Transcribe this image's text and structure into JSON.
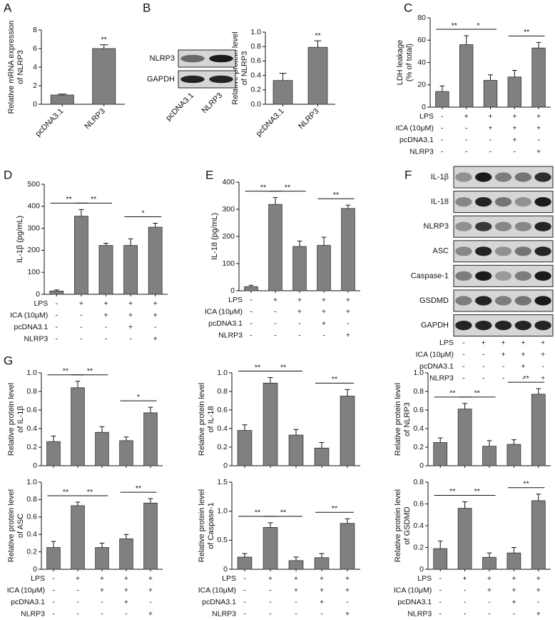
{
  "chart_data": [
    {
      "panel": "A",
      "type": "bar",
      "categories": [
        "pcDNA3.1",
        "NLRP3"
      ],
      "values": [
        1.0,
        6.0
      ],
      "errors": [
        0.1,
        0.4
      ],
      "ylabel": [
        "Relative mRNA expression",
        "of NLRP3"
      ],
      "ylim": [
        0,
        8
      ],
      "yticks": [
        0,
        2,
        4,
        6,
        8
      ],
      "color": "#808080",
      "significance": [
        {
          "from": 1,
          "to": 1,
          "label": "**"
        }
      ]
    },
    {
      "panel": "B",
      "type": "bar",
      "categories": [
        "pcDNA3.1",
        "NLRP3"
      ],
      "values": [
        0.33,
        0.79
      ],
      "errors": [
        0.1,
        0.09
      ],
      "ylabel": [
        "Relative protein level",
        "of NLRP3"
      ],
      "ylim": [
        0,
        1
      ],
      "yticks": [
        {
          "value": 0,
          "label": "0.0"
        },
        0.2,
        0.4,
        0.6,
        0.8,
        {
          "value": 1,
          "label": "1.0"
        }
      ],
      "color": "#808080",
      "significance": [
        {
          "from": 1,
          "to": 1,
          "label": "**"
        }
      ]
    },
    {
      "panel": "C",
      "type": "bar",
      "values": [
        14,
        56,
        24,
        27,
        53
      ],
      "errors": [
        5,
        8,
        5,
        6,
        5
      ],
      "ylabel": [
        "LDH leakage",
        "(% of total)"
      ],
      "ylim": [
        0,
        80
      ],
      "yticks": [
        0,
        20,
        40,
        60,
        80
      ],
      "color": "#808080",
      "significance": [
        {
          "from": 0,
          "to": 1,
          "label": "**"
        },
        {
          "from": 1,
          "to": 2,
          "label": "*"
        },
        {
          "from": 3,
          "to": 4,
          "label": "**"
        }
      ],
      "treatments": [
        {
          "name": "LPS",
          "signs": [
            "-",
            "+",
            "+",
            "+",
            "+"
          ]
        },
        {
          "name": "ICA (10μM)",
          "signs": [
            "-",
            "-",
            "+",
            "+",
            "+"
          ]
        },
        {
          "name": "pcDNA3.1",
          "signs": [
            "-",
            "-",
            "-",
            "+",
            "-"
          ]
        },
        {
          "name": "NLRP3",
          "signs": [
            "-",
            "-",
            "-",
            "-",
            "+"
          ]
        }
      ]
    },
    {
      "panel": "D",
      "type": "bar",
      "values": [
        15,
        355,
        222,
        222,
        305
      ],
      "errors": [
        5,
        30,
        10,
        30,
        18
      ],
      "ylabel": [
        "IL-1β (pg/mL)"
      ],
      "ylim": [
        0,
        500
      ],
      "yticks": [
        0,
        100,
        200,
        300,
        400,
        500
      ],
      "color": "#808080",
      "significance": [
        {
          "from": 0,
          "to": 1,
          "label": "**"
        },
        {
          "from": 1,
          "to": 2,
          "label": "**"
        },
        {
          "from": 3,
          "to": 4,
          "label": "*"
        }
      ],
      "treatments": [
        {
          "name": "LPS",
          "signs": [
            "-",
            "+",
            "+",
            "+",
            "+"
          ]
        },
        {
          "name": "ICA (10μM)",
          "signs": [
            "-",
            "-",
            "+",
            "+",
            "+"
          ]
        },
        {
          "name": "pcDNA3.1",
          "signs": [
            "-",
            "-",
            "-",
            "+",
            "-"
          ]
        },
        {
          "name": "NLRP3",
          "signs": [
            "-",
            "-",
            "-",
            "-",
            "+"
          ]
        }
      ]
    },
    {
      "panel": "E",
      "type": "bar",
      "values": [
        15,
        318,
        163,
        167,
        303
      ],
      "errors": [
        5,
        25,
        20,
        30,
        12
      ],
      "ylabel": [
        "IL-18 (pg/mL)"
      ],
      "ylim": [
        0,
        400
      ],
      "yticks": [
        0,
        100,
        200,
        300,
        400
      ],
      "color": "#808080",
      "significance": [
        {
          "from": 0,
          "to": 1,
          "label": "**"
        },
        {
          "from": 1,
          "to": 2,
          "label": "**"
        },
        {
          "from": 3,
          "to": 4,
          "label": "**"
        }
      ],
      "treatments": [
        {
          "name": "LPS",
          "signs": [
            "-",
            "+",
            "+",
            "+",
            "+"
          ]
        },
        {
          "name": "ICA (10μM)",
          "signs": [
            "-",
            "-",
            "+",
            "+",
            "+"
          ]
        },
        {
          "name": "pcDNA3.1",
          "signs": [
            "-",
            "-",
            "-",
            "+",
            "-"
          ]
        },
        {
          "name": "NLRP3",
          "signs": [
            "-",
            "-",
            "-",
            "-",
            "+"
          ]
        }
      ]
    },
    {
      "panel": "G",
      "type": "bar",
      "values": [
        0.26,
        0.84,
        0.36,
        0.27,
        0.57
      ],
      "errors": [
        0.06,
        0.07,
        0.06,
        0.04,
        0.06
      ],
      "ylabel": [
        "Relative protein level",
        "of IL-1β"
      ],
      "ylim": [
        0,
        1
      ],
      "yticks": [
        0,
        0.2,
        0.4,
        0.6,
        0.8,
        {
          "value": 1,
          "label": "1.0"
        }
      ],
      "color": "#808080",
      "significance": [
        {
          "from": 0,
          "to": 1,
          "label": "**"
        },
        {
          "from": 1,
          "to": 2,
          "label": "**"
        },
        {
          "from": 3,
          "to": 4,
          "label": "*"
        }
      ]
    },
    {
      "type": "bar",
      "values": [
        0.38,
        0.89,
        0.33,
        0.19,
        0.75
      ],
      "errors": [
        0.06,
        0.06,
        0.06,
        0.06,
        0.07
      ],
      "ylabel": [
        "Relative protein level",
        "of IL-18"
      ],
      "ylim": [
        0,
        1
      ],
      "yticks": [
        0,
        0.2,
        0.4,
        0.6,
        0.8,
        {
          "value": 1,
          "label": "1.0"
        }
      ],
      "color": "#808080",
      "significance": [
        {
          "from": 0,
          "to": 1,
          "label": "**"
        },
        {
          "from": 1,
          "to": 2,
          "label": "**"
        },
        {
          "from": 3,
          "to": 4,
          "label": "**"
        }
      ]
    },
    {
      "type": "bar",
      "values": [
        0.25,
        0.61,
        0.21,
        0.23,
        0.77
      ],
      "errors": [
        0.05,
        0.06,
        0.06,
        0.05,
        0.06
      ],
      "ylabel": [
        "Relative protein level",
        "of NLRP3"
      ],
      "ylim": [
        0,
        1
      ],
      "yticks": [
        0,
        0.2,
        0.4,
        0.6,
        0.8,
        {
          "value": 1,
          "label": "1.0"
        }
      ],
      "color": "#808080",
      "significance": [
        {
          "from": 0,
          "to": 1,
          "label": "**"
        },
        {
          "from": 1,
          "to": 2,
          "label": "**"
        },
        {
          "from": 3,
          "to": 4,
          "label": "**"
        }
      ]
    },
    {
      "type": "bar",
      "values": [
        0.25,
        0.73,
        0.25,
        0.35,
        0.76
      ],
      "errors": [
        0.07,
        0.04,
        0.05,
        0.05,
        0.05
      ],
      "ylabel": [
        "Relative protein level",
        "of ASC"
      ],
      "ylim": [
        0,
        1
      ],
      "yticks": [
        0,
        0.2,
        0.4,
        0.6,
        0.8,
        {
          "value": 1,
          "label": "1.0"
        }
      ],
      "color": "#808080",
      "significance": [
        {
          "from": 0,
          "to": 1,
          "label": "**"
        },
        {
          "from": 1,
          "to": 2,
          "label": "**"
        },
        {
          "from": 3,
          "to": 4,
          "label": "**"
        }
      ],
      "treatments": [
        {
          "name": "LPS",
          "signs": [
            "-",
            "+",
            "+",
            "+",
            "+"
          ]
        },
        {
          "name": "ICA (10μM)",
          "signs": [
            "-",
            "-",
            "+",
            "+",
            "+"
          ]
        },
        {
          "name": "pcDNA3.1",
          "signs": [
            "-",
            "-",
            "-",
            "+",
            "-"
          ]
        },
        {
          "name": "NLRP3",
          "signs": [
            "-",
            "-",
            "-",
            "-",
            "+"
          ]
        }
      ]
    },
    {
      "type": "bar",
      "values": [
        0.21,
        0.72,
        0.15,
        0.2,
        0.79
      ],
      "errors": [
        0.06,
        0.08,
        0.06,
        0.07,
        0.08
      ],
      "ylabel": [
        "Relative protein level",
        "of Caspase-1"
      ],
      "ylim": [
        0,
        1.5
      ],
      "yticks": [
        0,
        0.5,
        {
          "value": 1,
          "label": "1.0"
        },
        1.5
      ],
      "color": "#808080",
      "significance": [
        {
          "from": 0,
          "to": 1,
          "label": "**"
        },
        {
          "from": 1,
          "to": 2,
          "label": "**"
        },
        {
          "from": 3,
          "to": 4,
          "label": "**"
        }
      ],
      "treatments": [
        {
          "name": "LPS",
          "signs": [
            "-",
            "+",
            "+",
            "+",
            "+"
          ]
        },
        {
          "name": "ICA (10μM)",
          "signs": [
            "-",
            "-",
            "+",
            "+",
            "+"
          ]
        },
        {
          "name": "pcDNA3.1",
          "signs": [
            "-",
            "-",
            "-",
            "+",
            "-"
          ]
        },
        {
          "name": "NLRP3",
          "signs": [
            "-",
            "-",
            "-",
            "-",
            "+"
          ]
        }
      ]
    },
    {
      "type": "bar",
      "values": [
        0.19,
        0.56,
        0.11,
        0.15,
        0.63
      ],
      "errors": [
        0.07,
        0.06,
        0.04,
        0.05,
        0.06
      ],
      "ylabel": [
        "Relative protein level",
        "of GSDMD"
      ],
      "ylim": [
        0,
        0.8
      ],
      "yticks": [
        0,
        0.2,
        0.4,
        0.6,
        0.8
      ],
      "color": "#808080",
      "significance": [
        {
          "from": 0,
          "to": 1,
          "label": "**"
        },
        {
          "from": 1,
          "to": 2,
          "label": "**"
        },
        {
          "from": 3,
          "to": 4,
          "label": "**"
        }
      ],
      "treatments": [
        {
          "name": "LPS",
          "signs": [
            "-",
            "+",
            "+",
            "+",
            "+"
          ]
        },
        {
          "name": "ICA (10μM)",
          "signs": [
            "-",
            "-",
            "+",
            "+",
            "+"
          ]
        },
        {
          "name": "pcDNA3.1",
          "signs": [
            "-",
            "-",
            "-",
            "+",
            "-"
          ]
        },
        {
          "name": "NLRP3",
          "signs": [
            "-",
            "-",
            "-",
            "-",
            "+"
          ]
        }
      ]
    }
  ],
  "blots": [
    {
      "rows": [
        "NLRP3",
        "GAPDH"
      ],
      "lanes": [
        "pcDNA3.1",
        "NLRP3"
      ]
    },
    {
      "panel": "F",
      "rows": [
        "IL-1β",
        "IL-18",
        "NLRP3",
        "ASC",
        "Caspase-1",
        "GSDMD",
        "GAPDH"
      ],
      "treatments": [
        {
          "name": "LPS",
          "signs": [
            "-",
            "+",
            "+",
            "+",
            "+"
          ]
        },
        {
          "name": "ICA (10μM)",
          "signs": [
            "-",
            "-",
            "+",
            "+",
            "+"
          ]
        },
        {
          "name": "pcDNA3.1",
          "signs": [
            "-",
            "-",
            "-",
            "+",
            "-"
          ]
        },
        {
          "name": "NLRP3",
          "signs": [
            "-",
            "-",
            "-",
            "-",
            "+"
          ]
        }
      ]
    }
  ]
}
